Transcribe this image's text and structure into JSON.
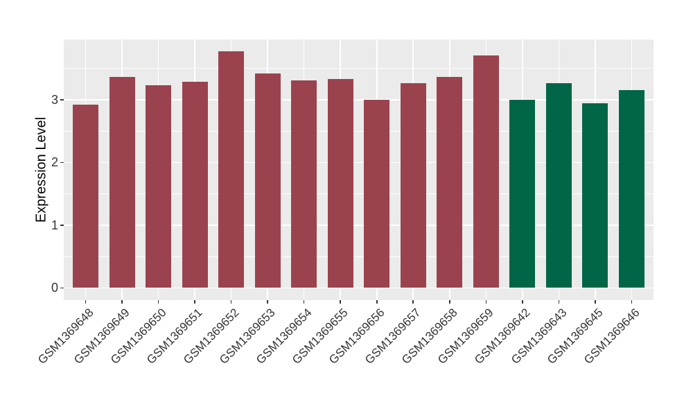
{
  "chart_data": {
    "type": "bar",
    "title": "",
    "xlabel": "",
    "ylabel": "Expression Level",
    "categories": [
      "GSM1369648",
      "GSM1369649",
      "GSM1369650",
      "GSM1369651",
      "GSM1369652",
      "GSM1369653",
      "GSM1369654",
      "GSM1369655",
      "GSM1369656",
      "GSM1369657",
      "GSM1369658",
      "GSM1369659",
      "GSM1369642",
      "GSM1369643",
      "GSM1369645",
      "GSM1369646"
    ],
    "values": [
      2.92,
      3.36,
      3.23,
      3.29,
      3.77,
      3.42,
      3.31,
      3.33,
      3.0,
      3.26,
      3.36,
      3.71,
      3.0,
      3.26,
      2.94,
      3.15
    ],
    "groups": [
      "group1",
      "group1",
      "group1",
      "group1",
      "group1",
      "group1",
      "group1",
      "group1",
      "group1",
      "group1",
      "group1",
      "group1",
      "group2",
      "group2",
      "group2",
      "group2"
    ],
    "group_colors": {
      "group1": "#9A434F",
      "group2": "#006647"
    },
    "yticks": [
      {
        "value": 0,
        "label": "0"
      },
      {
        "value": 1,
        "label": "1"
      },
      {
        "value": 2,
        "label": "2"
      },
      {
        "value": 3,
        "label": "3"
      }
    ],
    "minor_gridlines": [
      0.5,
      1.5,
      2.5,
      3.5
    ],
    "ylim": [
      -0.19,
      3.96
    ],
    "grid": true,
    "legend": "none",
    "style": {
      "panel_bg": "#EBEBEB",
      "gridline_color": "#FFFFFF",
      "axis_text_color": "#333333",
      "axis_title_color": "#000000",
      "tick_color": "#333333"
    }
  }
}
